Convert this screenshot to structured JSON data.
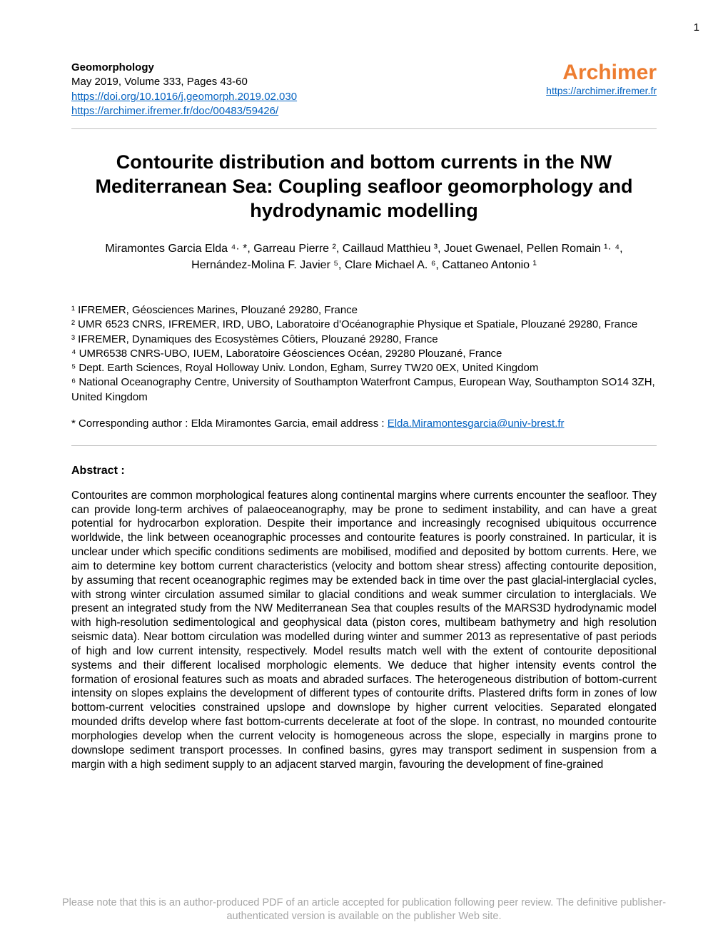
{
  "page_number": "1",
  "header": {
    "journal": "Geomorphology",
    "issue": "May 2019, Volume 333, Pages 43-60",
    "doi_url": "https://doi.org/10.1016/j.geomorph.2019.02.030",
    "archimer_doc_url": "https://archimer.ifremer.fr/doc/00483/59426/",
    "archimer_label": "Archimer",
    "archimer_url": "https://archimer.ifremer.fr"
  },
  "title": "Contourite distribution and bottom currents in the NW Mediterranean Sea: Coupling seafloor geomorphology and hydrodynamic modelling",
  "authors_line1": "Miramontes Garcia Elda ⁴· *, Garreau Pierre ², Caillaud Matthieu ³, Jouet Gwenael, Pellen Romain ¹· ⁴,",
  "authors_line2": "Hernández-Molina F. Javier ⁵, Clare Michael A. ⁶, Cattaneo Antonio ¹",
  "affiliations": {
    "a1": "¹ IFREMER, Géosciences Marines, Plouzané 29280, France",
    "a2": "² UMR 6523 CNRS, IFREMER, IRD, UBO, Laboratoire d'Océanographie Physique et Spatiale, Plouzané 29280, France",
    "a3": "³ IFREMER, Dynamiques des Ecosystèmes Côtiers, Plouzané 29280, France",
    "a4": "⁴ UMR6538 CNRS-UBO, IUEM, Laboratoire Géosciences Océan, 29280 Plouzané, France",
    "a5": "⁵ Dept. Earth Sciences, Royal Holloway Univ. London, Egham, Surrey TW20 0EX, United Kingdom",
    "a6": "⁶ National Oceanography Centre, University of Southampton Waterfront Campus, European Way, Southampton SO14 3ZH, United Kingdom"
  },
  "corresponding": {
    "label": "* Corresponding author : Elda Miramontes Garcia, email address : ",
    "email": "Elda.Miramontesgarcia@univ-brest.fr"
  },
  "abstract_heading": "Abstract :",
  "abstract_body": "Contourites are common morphological features along continental margins where currents encounter the seafloor. They can provide long-term archives of palaeoceanography, may be prone to sediment instability, and can have a great potential for hydrocarbon exploration. Despite their importance and increasingly recognised ubiquitous occurrence worldwide, the link between oceanographic processes and contourite features is poorly constrained. In particular, it is unclear under which specific conditions sediments are mobilised, modified and deposited by bottom currents. Here, we aim to determine key bottom current characteristics (velocity and bottom shear stress) affecting contourite deposition, by assuming that recent oceanographic regimes may be extended back in time over the past glacial-interglacial cycles, with strong winter circulation assumed similar to glacial conditions and weak summer circulation to interglacials. We present an integrated study from the NW Mediterranean Sea that couples results of the MARS3D hydrodynamic model with high-resolution sedimentological and geophysical data (piston cores, multibeam bathymetry and high resolution seismic data). Near bottom circulation was modelled during winter and summer 2013 as representative of past periods of high and low current intensity, respectively. Model results match well with the extent of contourite depositional systems and their different localised morphologic elements. We deduce that higher intensity events control the formation of erosional features such as moats and abraded surfaces. The heterogeneous distribution of bottom-current intensity on slopes explains the development of different types of contourite drifts. Plastered drifts form in zones of low bottom-current velocities constrained upslope and downslope by higher current velocities. Separated elongated mounded drifts develop where fast bottom-currents decelerate at foot of the slope. In contrast, no mounded contourite morphologies develop when the current velocity is homogeneous across the slope, especially in margins prone to downslope sediment transport processes. In confined basins, gyres may transport sediment in suspension from a margin with a high sediment supply to an adjacent starved margin, favouring the development of fine-grained",
  "footer": "Please note that this is an author-produced PDF of an article accepted for publication following peer review. The definitive publisher-authenticated version is available on the publisher Web site.",
  "colors": {
    "link": "#0563c1",
    "archimer": "#ed7d31",
    "divider": "#bfbfbf",
    "footer": "#a6a6a6",
    "text": "#000000",
    "background": "#ffffff"
  },
  "typography": {
    "body_font": "Arial",
    "title_size_pt": 20,
    "title_weight": "bold",
    "body_size_pt": 11.5,
    "archimer_size_pt": 22,
    "footer_size_pt": 11
  }
}
